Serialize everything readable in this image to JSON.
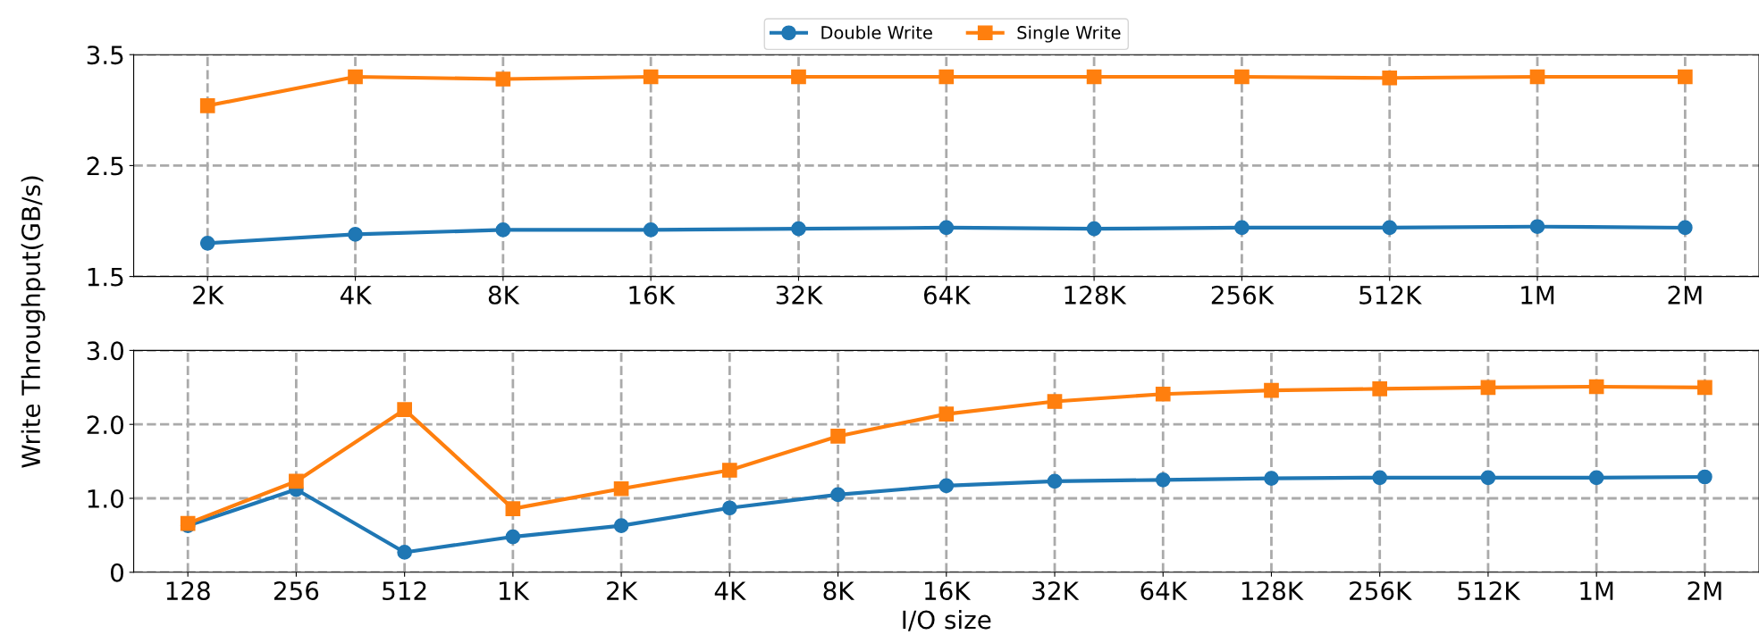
{
  "chart_data": [
    {
      "type": "line",
      "ylabel": "Write Throughput(GB/s)",
      "categories": [
        "2K",
        "4K",
        "8K",
        "16K",
        "32K",
        "64K",
        "128K",
        "256K",
        "512K",
        "1M",
        "2M"
      ],
      "ylim": [
        1.5,
        3.5
      ],
      "yticks": [
        1.5,
        2.5,
        3.5
      ],
      "grid": true,
      "legend": "top",
      "line_style": "solid",
      "series": [
        {
          "name": "Double Write",
          "color": "#1f77b4",
          "marker": "circle",
          "values": [
            1.8,
            1.88,
            1.92,
            1.92,
            1.93,
            1.94,
            1.93,
            1.94,
            1.94,
            1.95,
            1.94
          ]
        },
        {
          "name": "Single Write",
          "color": "#ff7f0e",
          "marker": "square",
          "values": [
            3.04,
            3.3,
            3.28,
            3.3,
            3.3,
            3.3,
            3.3,
            3.3,
            3.29,
            3.3,
            3.3
          ]
        }
      ]
    },
    {
      "type": "line",
      "xlabel": "I/O size",
      "categories": [
        "128",
        "256",
        "512",
        "1K",
        "2K",
        "4K",
        "8K",
        "16K",
        "32K",
        "64K",
        "128K",
        "256K",
        "512K",
        "1M",
        "2M"
      ],
      "ylim": [
        0,
        3
      ],
      "yticks": [
        0,
        {
          "value": 1,
          "label": "1.0"
        },
        {
          "value": 2,
          "label": "2.0"
        },
        {
          "value": 3,
          "label": "3.0"
        }
      ],
      "grid": true,
      "line_style": "solid",
      "series": [
        {
          "color": "#1f77b4",
          "marker": "circle",
          "values": [
            0.63,
            1.12,
            0.27,
            0.48,
            0.63,
            0.87,
            1.05,
            1.17,
            1.23,
            1.25,
            1.27,
            1.28,
            1.28,
            1.28,
            1.29
          ]
        },
        {
          "color": "#ff7f0e",
          "marker": "square",
          "values": [
            0.66,
            1.23,
            2.2,
            0.86,
            1.13,
            1.38,
            1.84,
            2.14,
            2.31,
            2.41,
            2.46,
            2.48,
            2.5,
            2.51,
            2.5
          ]
        }
      ]
    }
  ]
}
